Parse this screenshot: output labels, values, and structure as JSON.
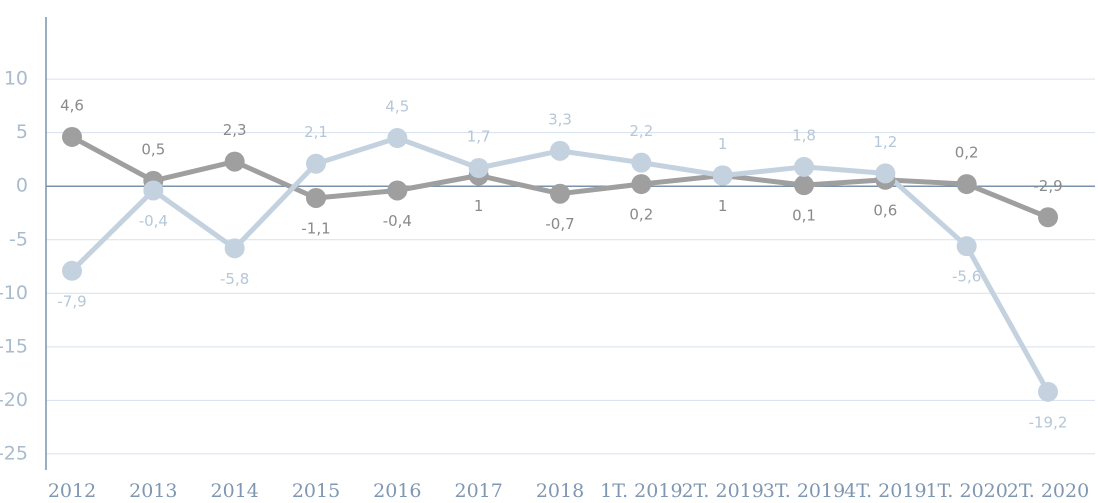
{
  "chart_data": {
    "type": "line",
    "categories": [
      "2012",
      "2013",
      "2014",
      "2015",
      "2016",
      "2017",
      "2018",
      "1T. 2019",
      "2T. 2019",
      "3T. 2019",
      "4T. 2019",
      "1T. 2020",
      "2T. 2020"
    ],
    "series": [
      {
        "color": "#a09fa0",
        "values": [
          4.6,
          0.5,
          2.3,
          -1.1,
          -0.4,
          1,
          -0.7,
          0.2,
          1,
          0.1,
          0.6,
          0.2,
          -2.9
        ],
        "value_labels": [
          "4,6",
          "0,5",
          "2,3",
          "-1,1",
          "-0,4",
          "1",
          "-0,7",
          "0,2",
          "1",
          "0,1",
          "0,6",
          "0,2",
          "-2,9"
        ]
      },
      {
        "color": "#c4d2e0",
        "values": [
          -7.9,
          -0.4,
          -5.8,
          2.1,
          4.5,
          1.7,
          3.3,
          2.2,
          1,
          1.8,
          1.2,
          -5.6,
          -19.2
        ],
        "value_labels": [
          "-7,9",
          "-0,4",
          "-5,8",
          "2,1",
          "4,5",
          "1,7",
          "3,3",
          "2,2",
          "1",
          "1,8",
          "1,2",
          "-5,6",
          "-19,2"
        ]
      }
    ],
    "ylim": [
      -26.5,
      15.8
    ],
    "yticks": [
      10,
      5,
      0,
      -5,
      -10,
      -15,
      -20,
      -25
    ],
    "grid": true
  }
}
